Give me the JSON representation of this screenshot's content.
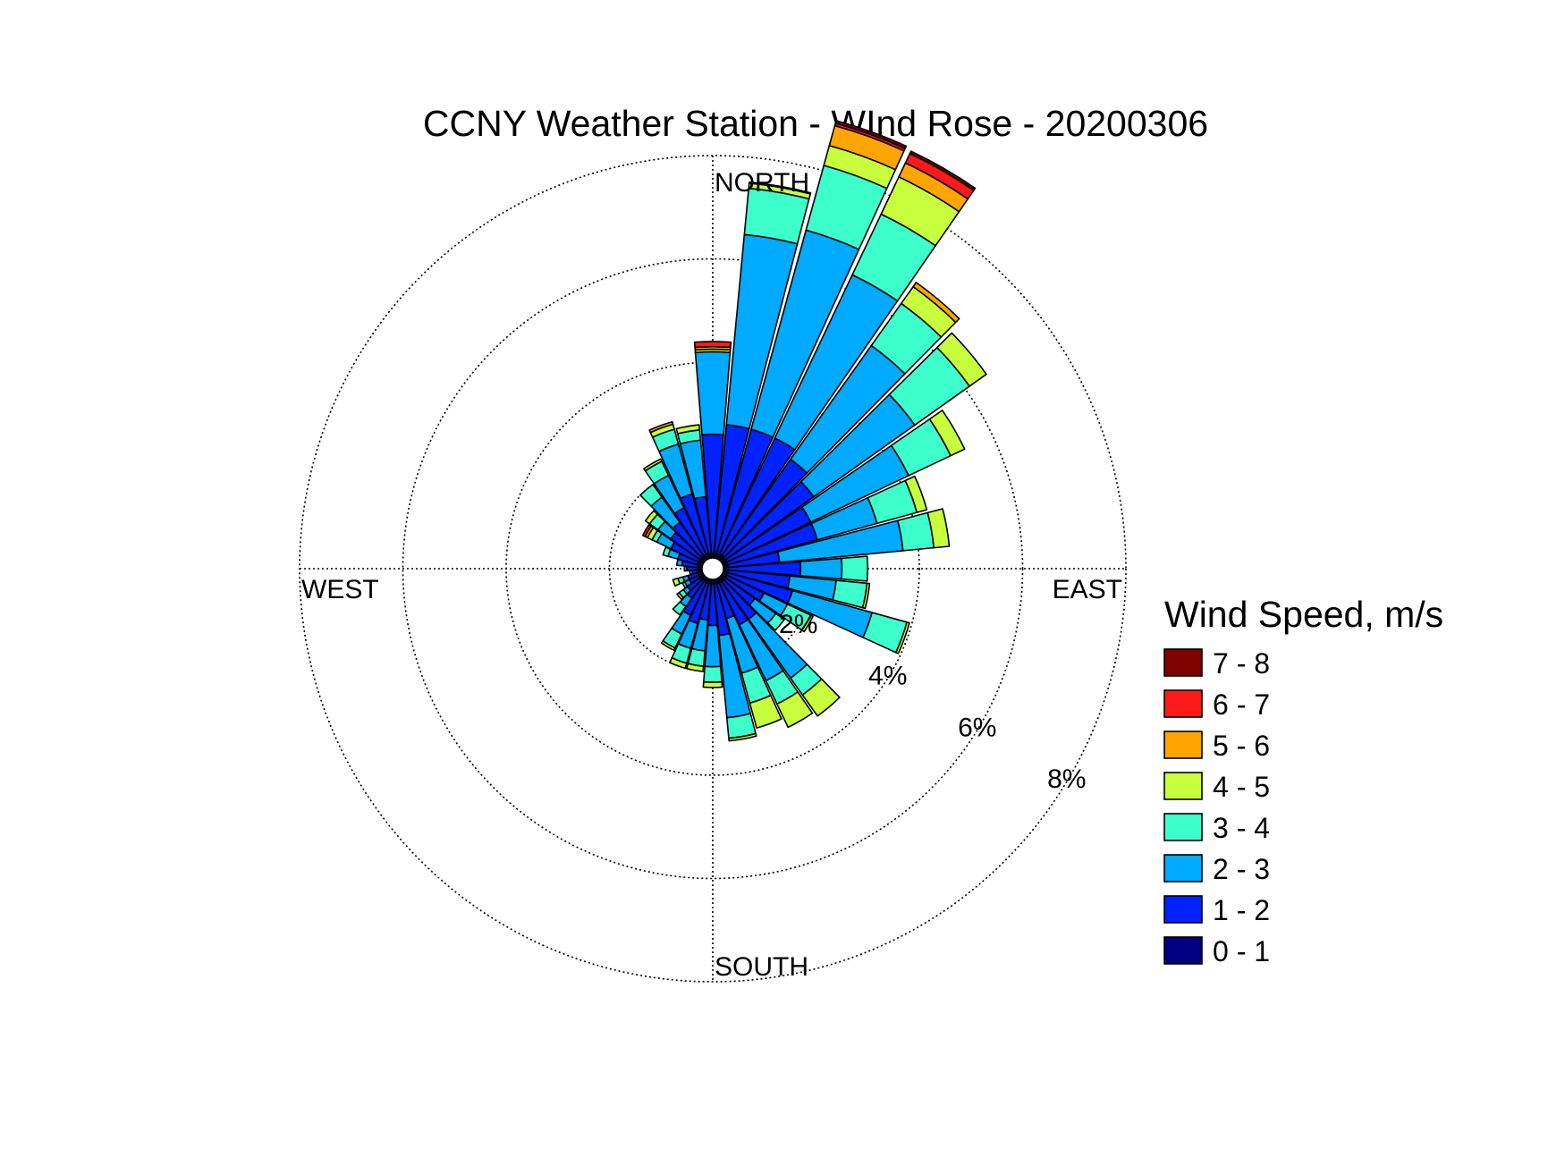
{
  "chart_data": {
    "type": "wind-rose",
    "title": "CCNY Weather Station - WInd Rose - 20200306",
    "direction_labels": {
      "north": "NORTH",
      "east": "EAST",
      "south": "SOUTH",
      "west": "WEST"
    },
    "radial_ticks": [
      {
        "value": 2,
        "label": "2%"
      },
      {
        "value": 4,
        "label": "4%"
      },
      {
        "value": 6,
        "label": "6%"
      },
      {
        "value": 8,
        "label": "8%"
      }
    ],
    "radial_max": 8,
    "grid": true,
    "legend": {
      "title": "Wind Speed, m/s",
      "placement": "right",
      "bins": [
        {
          "label": "7 - 8",
          "color": "#800000"
        },
        {
          "label": "6 - 7",
          "color": "#ff1a1a"
        },
        {
          "label": "5 - 6",
          "color": "#ffa500"
        },
        {
          "label": "4 - 5",
          "color": "#c8ff3c"
        },
        {
          "label": "3 - 4",
          "color": "#3cffcc"
        },
        {
          "label": "2 - 3",
          "color": "#00aaff"
        },
        {
          "label": "1 - 2",
          "color": "#0022ff"
        },
        {
          "label": "0 - 1",
          "color": "#000080"
        }
      ]
    },
    "bin_order": [
      "0 - 1",
      "1 - 2",
      "2 - 3",
      "3 - 4",
      "4 - 5",
      "5 - 6",
      "6 - 7",
      "7 - 8"
    ],
    "sectors_deg": [
      0,
      10,
      20,
      30,
      40,
      50,
      60,
      70,
      80,
      90,
      100,
      110,
      120,
      130,
      140,
      150,
      160,
      170,
      180,
      190,
      200,
      210,
      220,
      230,
      240,
      250,
      260,
      270,
      280,
      290,
      300,
      310,
      320,
      330,
      340,
      350
    ],
    "frequencies_percent": [
      [
        0.3,
        2.3,
        1.6,
        0.0,
        0.05,
        0.05,
        0.1,
        0.0
      ],
      [
        0.3,
        2.5,
        3.7,
        0.9,
        0.1,
        0.02,
        0.0,
        0.0
      ],
      [
        0.3,
        2.5,
        4.0,
        1.3,
        0.4,
        0.4,
        0.05,
        0.05
      ],
      [
        0.3,
        2.5,
        3.5,
        1.3,
        0.8,
        0.3,
        0.2,
        0.05
      ],
      [
        0.3,
        2.3,
        2.7,
        1.0,
        0.4,
        0.1,
        0.0,
        0.0
      ],
      [
        0.3,
        2.1,
        2.4,
        1.3,
        0.4,
        0.0,
        0.0,
        0.0
      ],
      [
        0.3,
        1.8,
        2.1,
        0.9,
        0.3,
        0.0,
        0.0,
        0.0
      ],
      [
        0.3,
        1.8,
        1.2,
        0.8,
        0.2,
        0.0,
        0.0,
        0.0
      ],
      [
        0.3,
        1.0,
        2.4,
        0.6,
        0.3,
        0.0,
        0.0,
        0.0
      ],
      [
        0.3,
        1.4,
        0.8,
        0.5,
        0.0,
        0.0,
        0.0,
        0.0
      ],
      [
        0.3,
        1.2,
        0.9,
        0.6,
        0.05,
        0.0,
        0.0,
        0.0
      ],
      [
        0.3,
        1.3,
        1.6,
        0.7,
        0.05,
        0.0,
        0.0,
        0.0
      ],
      [
        0.3,
        0.8,
        0.5,
        0.5,
        0.05,
        0.0,
        0.0,
        0.0
      ],
      [
        0.3,
        0.7,
        0.5,
        0.2,
        0.0,
        0.0,
        0.0,
        0.0
      ],
      [
        0.3,
        0.9,
        1.4,
        0.4,
        0.5,
        0.0,
        0.0,
        0.0
      ],
      [
        0.3,
        0.9,
        1.2,
        0.5,
        0.5,
        0.0,
        0.0,
        0.0
      ],
      [
        0.3,
        0.7,
        1.1,
        0.6,
        0.5,
        0.0,
        0.0,
        0.0
      ],
      [
        0.3,
        1.0,
        1.6,
        0.4,
        0.05,
        0.0,
        0.0,
        0.0
      ],
      [
        0.3,
        0.8,
        0.8,
        0.3,
        0.1,
        0.0,
        0.0,
        0.0
      ],
      [
        0.3,
        0.7,
        0.6,
        0.3,
        0.1,
        0.0,
        0.0,
        0.0
      ],
      [
        0.3,
        0.8,
        0.5,
        0.3,
        0.1,
        0.0,
        0.0,
        0.0
      ],
      [
        0.3,
        0.7,
        0.4,
        0.3,
        0.05,
        0.0,
        0.0,
        0.0
      ],
      [
        0.3,
        0.4,
        0.2,
        0.2,
        0.0,
        0.0,
        0.0,
        0.0
      ],
      [
        0.3,
        0.3,
        0.1,
        0.1,
        0.05,
        0.0,
        0.0,
        0.0
      ],
      [
        0.3,
        0.2,
        0.1,
        0.05,
        0.0,
        0.0,
        0.0,
        0.0
      ],
      [
        0.3,
        0.2,
        0.1,
        0.1,
        0.1,
        0.0,
        0.0,
        0.0
      ],
      [
        0.3,
        0.1,
        0.05,
        0.0,
        0.0,
        0.0,
        0.0,
        0.0
      ],
      [
        0.3,
        0.2,
        0.05,
        0.0,
        0.0,
        0.0,
        0.0,
        0.0
      ],
      [
        0.3,
        0.3,
        0.1,
        0.0,
        0.0,
        0.0,
        0.0,
        0.0
      ],
      [
        0.3,
        0.4,
        0.2,
        0.1,
        0.0,
        0.0,
        0.0,
        0.0
      ],
      [
        0.3,
        0.6,
        0.3,
        0.1,
        0.1,
        0.05,
        0.05,
        0.0
      ],
      [
        0.3,
        0.7,
        0.3,
        0.2,
        0.1,
        0.0,
        0.0,
        0.0
      ],
      [
        0.3,
        0.8,
        0.6,
        0.3,
        0.0,
        0.0,
        0.0,
        0.0
      ],
      [
        0.3,
        1.0,
        0.7,
        0.3,
        0.05,
        0.0,
        0.0,
        0.0
      ],
      [
        0.3,
        1.2,
        1.0,
        0.3,
        0.1,
        0.05,
        0.0,
        0.0
      ],
      [
        0.3,
        1.1,
        1.1,
        0.2,
        0.1,
        0.0,
        0.0,
        0.0
      ]
    ]
  }
}
